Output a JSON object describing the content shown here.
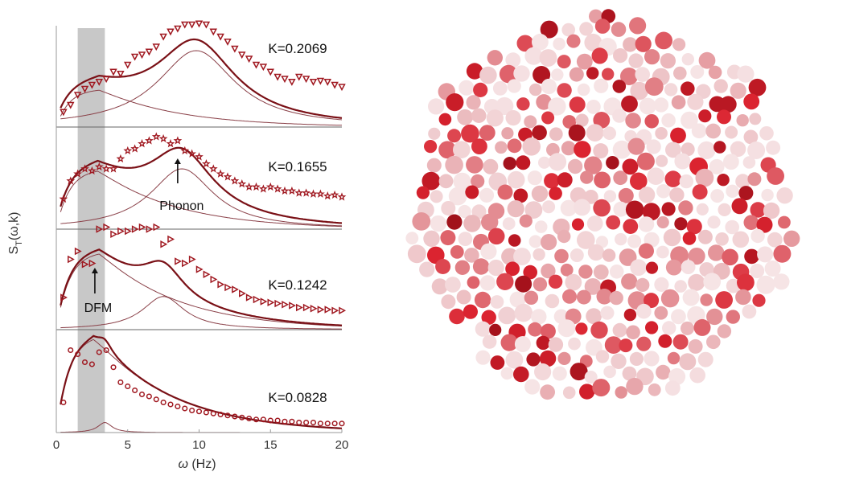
{
  "chart_data": [
    {
      "type": "line",
      "ylabel": "S_T(ω,k)",
      "ylabel_main": "S",
      "ylabel_sub": "T",
      "ylabel_rest": "(ω,k)",
      "xlabel": "ω (Hz)",
      "xlabel_sym": "ω",
      "xlabel_unit": " (Hz)",
      "xlim": [
        0,
        20
      ],
      "xticks": [
        "0",
        "5",
        "10",
        "15",
        "20"
      ],
      "shaded_band": [
        1.5,
        3.4
      ],
      "panels": [
        {
          "label": "K=0.2069",
          "marker": "triangle-down",
          "data_x": [
            0.5,
            1,
            1.5,
            2,
            2.5,
            3,
            3.5,
            4,
            4.5,
            5,
            5.5,
            6,
            6.5,
            7,
            7.5,
            8,
            8.5,
            9,
            9.5,
            10,
            10.5,
            11,
            11.5,
            12,
            12.5,
            13,
            13.5,
            14,
            14.5,
            15,
            15.5,
            16,
            16.5,
            17,
            17.5,
            18,
            18.5,
            19,
            19.5,
            20
          ],
          "data_y": [
            0.15,
            0.22,
            0.32,
            0.38,
            0.42,
            0.45,
            0.48,
            0.55,
            0.53,
            0.62,
            0.7,
            0.72,
            0.75,
            0.8,
            0.9,
            0.95,
            0.98,
            1.02,
            1.02,
            1.03,
            1.02,
            0.95,
            0.9,
            0.85,
            0.78,
            0.72,
            0.68,
            0.62,
            0.6,
            0.55,
            0.5,
            0.48,
            0.45,
            0.5,
            0.48,
            0.45,
            0.46,
            0.45,
            0.42,
            0.4
          ]
        },
        {
          "label": "K=0.1655",
          "marker": "star",
          "data_x": [
            0.5,
            1,
            1.5,
            2,
            2.5,
            3,
            3.5,
            4,
            4.5,
            5,
            5.5,
            6,
            6.5,
            7,
            7.5,
            8,
            8.5,
            9,
            9.5,
            10,
            10.5,
            11,
            11.5,
            12,
            12.5,
            13,
            13.5,
            14,
            14.5,
            15,
            15.5,
            16,
            16.5,
            17,
            17.5,
            18,
            18.5,
            19,
            19.5,
            20
          ],
          "data_y": [
            0.3,
            0.48,
            0.55,
            0.6,
            0.58,
            0.62,
            0.6,
            0.6,
            0.7,
            0.78,
            0.8,
            0.85,
            0.88,
            0.92,
            0.9,
            0.85,
            0.88,
            0.78,
            0.75,
            0.72,
            0.65,
            0.6,
            0.55,
            0.52,
            0.48,
            0.45,
            0.42,
            0.42,
            0.4,
            0.42,
            0.4,
            0.38,
            0.38,
            0.36,
            0.36,
            0.35,
            0.35,
            0.33,
            0.34,
            0.32
          ]
        },
        {
          "label": "K=0.1242",
          "marker": "triangle-right",
          "data_x": [
            0.5,
            1,
            1.5,
            2,
            2.5,
            3,
            3.5,
            4,
            4.5,
            5,
            5.5,
            6,
            6.5,
            7,
            7.5,
            8,
            8.5,
            9,
            9.5,
            10,
            10.5,
            11,
            11.5,
            12,
            12.5,
            13,
            13.5,
            14,
            14.5,
            15,
            15.5,
            16,
            16.5,
            17,
            17.5,
            18,
            18.5,
            19,
            19.5,
            20
          ],
          "data_y": [
            0.32,
            0.7,
            0.78,
            0.65,
            0.66,
            1.0,
            1.02,
            0.95,
            0.98,
            0.98,
            1.0,
            1.02,
            1.0,
            1.02,
            0.85,
            0.9,
            0.68,
            0.66,
            0.7,
            0.6,
            0.55,
            0.5,
            0.45,
            0.42,
            0.4,
            0.36,
            0.32,
            0.3,
            0.28,
            0.27,
            0.26,
            0.25,
            0.24,
            0.22,
            0.22,
            0.21,
            0.2,
            0.2,
            0.19,
            0.19
          ]
        },
        {
          "label": "K=0.0828",
          "marker": "ring",
          "data_x": [
            0.5,
            1,
            1.5,
            2,
            2.5,
            3,
            3.5,
            4,
            4.5,
            5,
            5.5,
            6,
            6.5,
            7,
            7.5,
            8,
            8.5,
            9,
            9.5,
            10,
            10.5,
            11,
            11.5,
            12,
            12.5,
            13,
            13.5,
            14,
            14.5,
            15,
            15.5,
            16,
            16.5,
            17,
            17.5,
            18,
            18.5,
            19,
            19.5,
            20
          ],
          "data_y": [
            0.3,
            0.82,
            0.78,
            0.7,
            0.68,
            0.8,
            0.82,
            0.65,
            0.5,
            0.46,
            0.42,
            0.38,
            0.36,
            0.33,
            0.3,
            0.28,
            0.26,
            0.24,
            0.22,
            0.21,
            0.2,
            0.19,
            0.18,
            0.17,
            0.16,
            0.15,
            0.14,
            0.13,
            0.13,
            0.12,
            0.12,
            0.11,
            0.11,
            0.1,
            0.1,
            0.1,
            0.09,
            0.09,
            0.09,
            0.09
          ]
        }
      ],
      "annotations": [
        {
          "text": "Phonon",
          "panel": 1,
          "x": 8.5
        },
        {
          "text": "DFM",
          "panel": 2,
          "x": 2.7
        }
      ]
    }
  ],
  "colors": {
    "fit_line": "#7a1016",
    "component_line": "#8a4048",
    "markers": "#a01820",
    "shaded_band": "#c8c8c8",
    "cluster_dark": "#b01010",
    "cluster_light": "#f5e4e6"
  }
}
